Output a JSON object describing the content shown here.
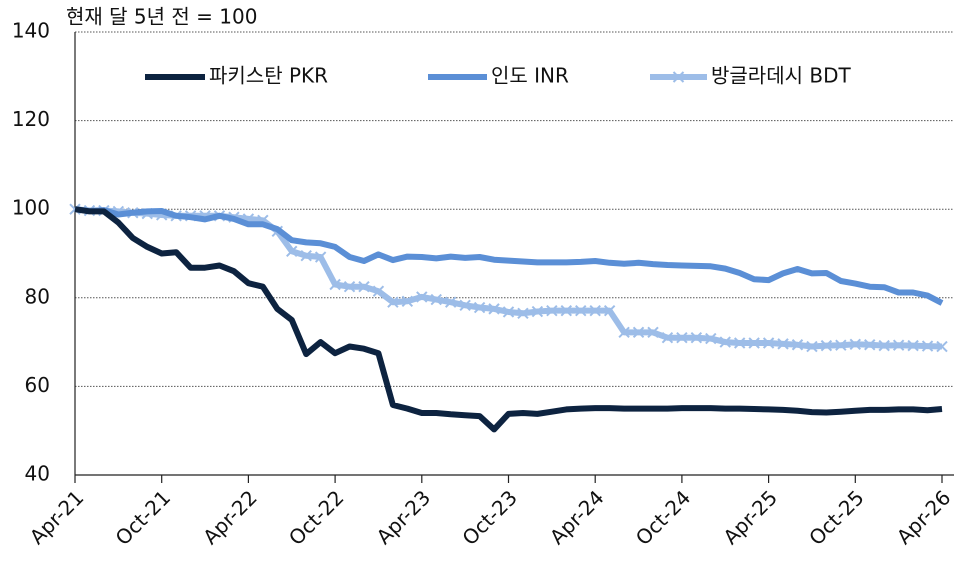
{
  "chart_data": {
    "type": "line",
    "y_axis_label": "현재 달 5년 전 = 100",
    "categories": [
      "Apr-21",
      null,
      null,
      null,
      null,
      null,
      "Oct-21",
      null,
      null,
      null,
      null,
      null,
      "Apr-22",
      null,
      null,
      null,
      null,
      null,
      "Oct-22",
      null,
      null,
      null,
      null,
      null,
      "Apr-23",
      null,
      null,
      null,
      null,
      null,
      "Oct-23",
      null,
      null,
      null,
      null,
      null,
      "Apr-24",
      null,
      null,
      null,
      null,
      null,
      "Oct-24",
      null,
      null,
      null,
      null,
      null,
      "Apr-25",
      null,
      null,
      null,
      null,
      null,
      "Oct-25",
      null,
      null,
      null,
      null,
      null,
      "Apr-26"
    ],
    "series": [
      {
        "name": "파키스탄 PKR",
        "color": "#0d2340",
        "marker": "none",
        "values": [
          100,
          99.5,
          99.5,
          97,
          93.5,
          91.5,
          90,
          90.3,
          86.8,
          86.8,
          87.3,
          86,
          83.3,
          82.5,
          77.5,
          75,
          67.3,
          70,
          67.5,
          69,
          68.5,
          67.5,
          55.8,
          55,
          54,
          54,
          53.7,
          53.5,
          53.3,
          50.3,
          53.8,
          54,
          53.8,
          54.3,
          54.8,
          55,
          55.1,
          55.1,
          55,
          55,
          55,
          55,
          55.1,
          55.1,
          55.1,
          55,
          55,
          54.9,
          54.8,
          54.7,
          54.5,
          54.2,
          54.1,
          54.3,
          54.5,
          54.7,
          54.7,
          54.8,
          54.8,
          54.6,
          54.9
        ]
      },
      {
        "name": "인도 INR",
        "color": "#5b8fd6",
        "marker": "none",
        "values": [
          100,
          99.6,
          99.8,
          98.8,
          99.2,
          99.5,
          99.6,
          98.5,
          98.2,
          97.7,
          98.5,
          97.8,
          96.6,
          96.6,
          95.5,
          93,
          92.5,
          92.3,
          91.5,
          89.2,
          88.3,
          89.8,
          88.5,
          89.3,
          89.2,
          88.9,
          89.3,
          89,
          89.2,
          88.6,
          88.4,
          88.2,
          88,
          88,
          88,
          88.1,
          88.3,
          87.9,
          87.7,
          87.9,
          87.6,
          87.4,
          87.3,
          87.2,
          87.1,
          86.6,
          85.6,
          84.2,
          84,
          85.5,
          86.5,
          85.5,
          85.6,
          83.8,
          83.2,
          82.5,
          82.4,
          81.2,
          81.2,
          80.5,
          78.8
        ]
      },
      {
        "name": "방글라데시 BDT",
        "color": "#9dbde8",
        "marker": "x",
        "values": [
          100,
          99.7,
          99.7,
          99.5,
          99.2,
          99,
          98.7,
          98.5,
          98.5,
          98.5,
          98.5,
          98.2,
          97.8,
          97.5,
          95,
          90.5,
          89.5,
          89.2,
          83,
          82.5,
          82.5,
          81.5,
          79,
          79.2,
          80.2,
          79.6,
          79,
          78.3,
          77.8,
          77.5,
          76.8,
          76.5,
          76.9,
          77.1,
          77.1,
          77.1,
          77.1,
          77.1,
          72.2,
          72.2,
          72.2,
          71,
          71,
          71,
          70.8,
          70,
          69.8,
          69.8,
          69.8,
          69.6,
          69.4,
          69,
          69.2,
          69.3,
          69.5,
          69.4,
          69.2,
          69.3,
          69.2,
          69.1,
          69
        ]
      }
    ],
    "ylim": [
      40,
      140
    ],
    "yticks": [
      40,
      60,
      80,
      100,
      120,
      140
    ],
    "grid": true,
    "legend": "top"
  }
}
